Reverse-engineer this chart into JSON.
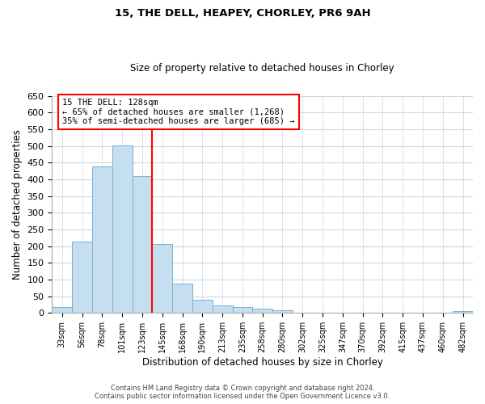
{
  "title": "15, THE DELL, HEAPEY, CHORLEY, PR6 9AH",
  "subtitle": "Size of property relative to detached houses in Chorley",
  "xlabel": "Distribution of detached houses by size in Chorley",
  "ylabel": "Number of detached properties",
  "bar_labels": [
    "33sqm",
    "56sqm",
    "78sqm",
    "101sqm",
    "123sqm",
    "145sqm",
    "168sqm",
    "190sqm",
    "213sqm",
    "235sqm",
    "258sqm",
    "280sqm",
    "302sqm",
    "325sqm",
    "347sqm",
    "370sqm",
    "392sqm",
    "415sqm",
    "437sqm",
    "460sqm",
    "482sqm"
  ],
  "bar_values": [
    18,
    213,
    438,
    502,
    410,
    207,
    88,
    40,
    22,
    18,
    13,
    8,
    0,
    0,
    0,
    0,
    0,
    0,
    0,
    0,
    5
  ],
  "bar_color": "#c5dff0",
  "bar_edge_color": "#7ab0cc",
  "vline_color": "red",
  "annotation_title": "15 THE DELL: 128sqm",
  "annotation_line1": "← 65% of detached houses are smaller (1,268)",
  "annotation_line2": "35% of semi-detached houses are larger (685) →",
  "annotation_box_color": "white",
  "annotation_box_edge": "red",
  "ylim": [
    0,
    650
  ],
  "yticks": [
    0,
    50,
    100,
    150,
    200,
    250,
    300,
    350,
    400,
    450,
    500,
    550,
    600,
    650
  ],
  "footer1": "Contains HM Land Registry data © Crown copyright and database right 2024.",
  "footer2": "Contains public sector information licensed under the Open Government Licence v3.0.",
  "bg_color": "#ffffff",
  "grid_color": "#c8d8e8"
}
